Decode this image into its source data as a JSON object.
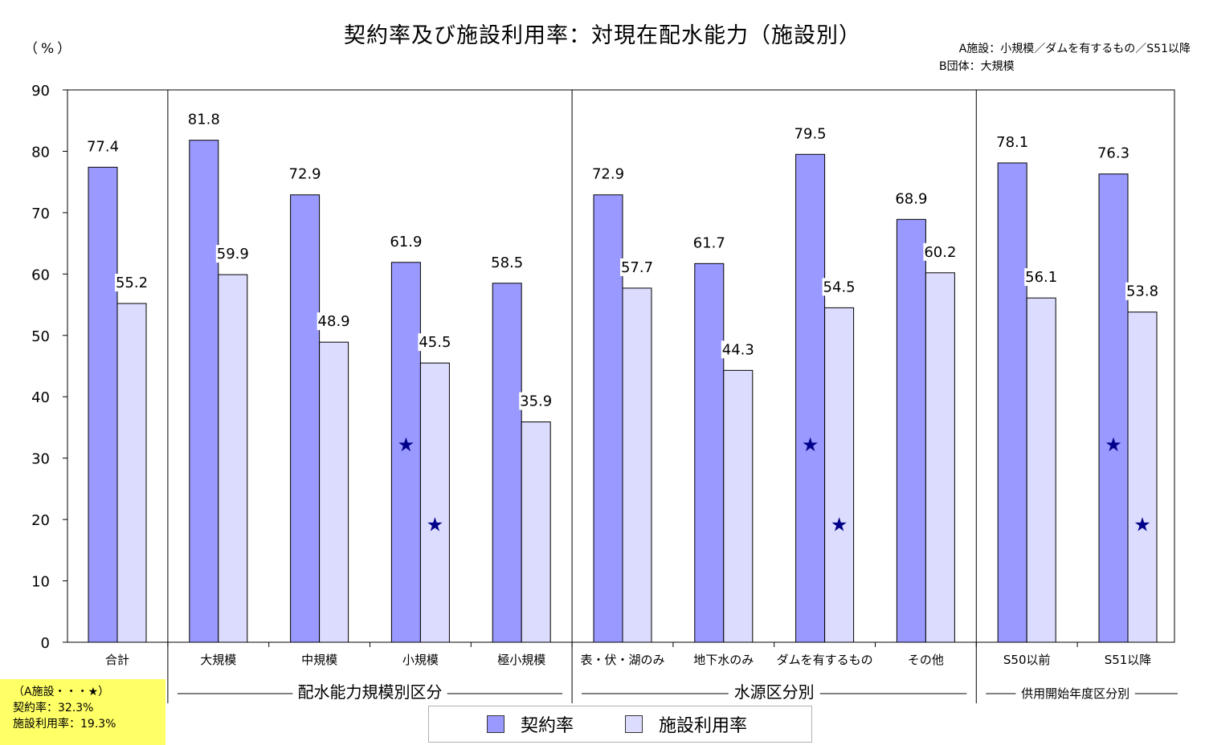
{
  "chart_data": {
    "type": "bar",
    "title": "契約率及び施設利用率：対現在配水能力（施設別）",
    "y_unit": "（%）",
    "ylim": [
      0,
      90
    ],
    "yticks": [
      0,
      10,
      20,
      30,
      40,
      50,
      60,
      70,
      80,
      90
    ],
    "categories": [
      "合計",
      "大規模",
      "中規模",
      "小規模",
      "極小規模",
      "表・伏・湖のみ",
      "地下水のみ",
      "ダムを有するもの",
      "その他",
      "S50以前",
      "S51以降"
    ],
    "series": [
      {
        "name": "契約率",
        "color": "#9999ff",
        "values": [
          77.4,
          81.8,
          72.9,
          61.9,
          58.5,
          72.9,
          61.7,
          79.5,
          68.9,
          78.1,
          76.3
        ]
      },
      {
        "name": "施設利用率",
        "color": "#dcdcff",
        "values": [
          55.2,
          59.9,
          48.9,
          45.5,
          35.9,
          57.7,
          44.3,
          54.5,
          60.2,
          56.1,
          53.8
        ]
      }
    ],
    "groups": [
      {
        "label": "配水能力規模別区分"
      },
      {
        "label": "水源区分別"
      },
      {
        "label": "供用開始年度区分別"
      }
    ],
    "stars": {
      "symbol": "★",
      "color": "#00008b",
      "categories": [
        "小規模",
        "ダムを有するもの",
        "S51以降"
      ],
      "values": {
        "契約率": 32.3,
        "施設利用率": 19.3
      }
    },
    "notes": {
      "line1": "A施設：小規模／ダムを有するもの／S51以降",
      "line2": "B団体：大規模"
    },
    "note_box": {
      "line1": "（A施設・・・★）",
      "line2": "契約率：32.3%",
      "line3": "施設利用率：19.3%"
    },
    "legend": {
      "item1": "契約率",
      "item2": "施設利用率"
    },
    "grid": false,
    "legend_position": "bottom-center"
  }
}
